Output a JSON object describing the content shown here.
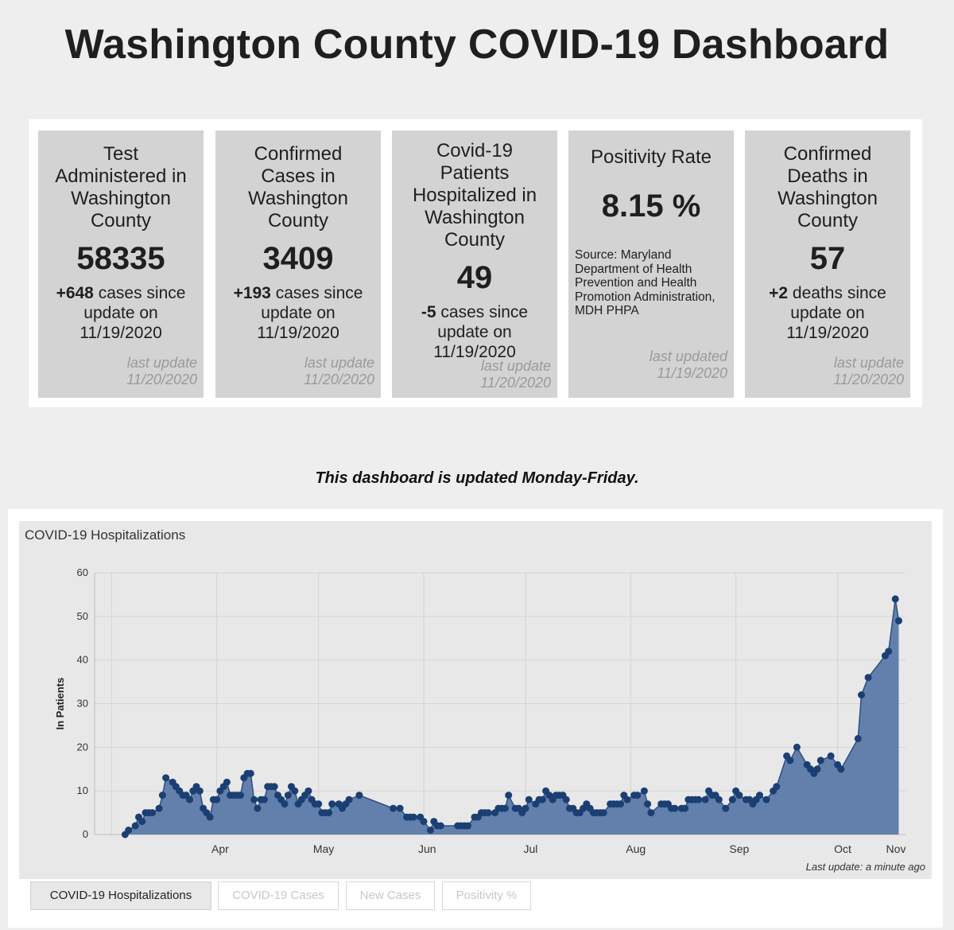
{
  "page": {
    "title": "Washington County COVID-19 Dashboard",
    "update_note": "This dashboard is updated Monday-Friday."
  },
  "cards": [
    {
      "title_lines": [
        "Test",
        "Administered in",
        "Washington",
        "County"
      ],
      "value": "58335",
      "change_value": "+648",
      "change_text_lines": [
        " cases since",
        "update on",
        "11/19/2020"
      ],
      "updated_lines": [
        "last update",
        "11/20/2020"
      ]
    },
    {
      "title_lines": [
        "Confirmed",
        "Cases in",
        "Washington",
        "County"
      ],
      "value": "3409",
      "change_value": "+193",
      "change_text_lines": [
        " cases since",
        "update on",
        "11/19/2020"
      ],
      "updated_lines": [
        "last update",
        "11/20/2020"
      ]
    },
    {
      "title_lines": [
        "Covid-19",
        "Patients",
        "Hospitalized in",
        "Washington",
        "County"
      ],
      "value": "49",
      "change_value": "-5",
      "change_text_lines": [
        " cases since",
        "update on",
        "11/19/2020"
      ],
      "updated_lines": [
        "last update",
        "11/20/2020"
      ]
    },
    {
      "title_lines": [
        "Positivity Rate"
      ],
      "value": "8.15 %",
      "source_lines": [
        "Source: Maryland",
        "Department of Health",
        "Prevention and Health",
        "Promotion Administration,",
        "MDH PHPA"
      ],
      "updated_lines": [
        "last updated",
        "11/19/2020"
      ]
    },
    {
      "title_lines": [
        "Confirmed",
        "Deaths in",
        "Washington",
        "County"
      ],
      "value": "57",
      "change_value": "+2",
      "change_text_lines": [
        " deaths since",
        "update on",
        "11/19/2020"
      ],
      "updated_lines": [
        "last update",
        "11/20/2020"
      ]
    }
  ],
  "chart_panel": {
    "title": "COVID-19 Hospitalizations",
    "last_update": "Last update: a minute ago",
    "tabs": [
      {
        "label": "COVID-19 Hospitalizations",
        "active": true
      },
      {
        "label": "COVID-19 Cases",
        "active": false
      },
      {
        "label": "New Cases",
        "active": false
      },
      {
        "label": "Positivity %",
        "active": false
      }
    ]
  },
  "colors": {
    "area_fill": "#5b7aa8",
    "line": "#2c4f82",
    "marker": "#1b3f73",
    "card_bg": "#d3d3d3"
  },
  "chart_data": {
    "type": "area",
    "title": "COVID-19 Hospitalizations",
    "ylabel": "In Patients",
    "xlabel": "",
    "ylim": [
      0,
      60
    ],
    "yticks": [
      0,
      10,
      20,
      30,
      40,
      50,
      60
    ],
    "xtick_labels": [
      "Apr",
      "May",
      "Jun",
      "Jul",
      "Aug",
      "Sep",
      "Oct",
      "Nov"
    ],
    "xtick_dates": [
      "2020-04-01",
      "2020-05-01",
      "2020-06-01",
      "2020-07-01",
      "2020-08-01",
      "2020-09-01",
      "2020-10-01",
      "2020-11-01"
    ],
    "grid": true,
    "series": [
      {
        "name": "",
        "points": [
          [
            "2020-03-19",
            0
          ],
          [
            "2020-03-20",
            1
          ],
          [
            "2020-03-22",
            2
          ],
          [
            "2020-03-23",
            4
          ],
          [
            "2020-03-24",
            3
          ],
          [
            "2020-03-25",
            5
          ],
          [
            "2020-03-26",
            5
          ],
          [
            "2020-03-27",
            5
          ],
          [
            "2020-03-29",
            6
          ],
          [
            "2020-03-30",
            9
          ],
          [
            "2020-03-31",
            13
          ],
          [
            "2020-04-02",
            12
          ],
          [
            "2020-04-03",
            11
          ],
          [
            "2020-04-04",
            10
          ],
          [
            "2020-04-05",
            9
          ],
          [
            "2020-04-06",
            9
          ],
          [
            "2020-04-07",
            8
          ],
          [
            "2020-04-08",
            10
          ],
          [
            "2020-04-09",
            11
          ],
          [
            "2020-04-10",
            10
          ],
          [
            "2020-04-11",
            6
          ],
          [
            "2020-04-12",
            5
          ],
          [
            "2020-04-13",
            4
          ],
          [
            "2020-04-14",
            8
          ],
          [
            "2020-04-15",
            8
          ],
          [
            "2020-04-16",
            10
          ],
          [
            "2020-04-17",
            11
          ],
          [
            "2020-04-18",
            12
          ],
          [
            "2020-04-19",
            9
          ],
          [
            "2020-04-20",
            9
          ],
          [
            "2020-04-21",
            9
          ],
          [
            "2020-04-22",
            9
          ],
          [
            "2020-04-23",
            13
          ],
          [
            "2020-04-24",
            14
          ],
          [
            "2020-04-25",
            14
          ],
          [
            "2020-04-26",
            8
          ],
          [
            "2020-04-27",
            6
          ],
          [
            "2020-04-28",
            8
          ],
          [
            "2020-04-29",
            8
          ],
          [
            "2020-04-30",
            11
          ],
          [
            "2020-05-01",
            11
          ],
          [
            "2020-05-02",
            11
          ],
          [
            "2020-05-03",
            9
          ],
          [
            "2020-05-04",
            8
          ],
          [
            "2020-05-05",
            7
          ],
          [
            "2020-05-06",
            9
          ],
          [
            "2020-05-07",
            11
          ],
          [
            "2020-05-08",
            10
          ],
          [
            "2020-05-09",
            7
          ],
          [
            "2020-05-10",
            8
          ],
          [
            "2020-05-11",
            9
          ],
          [
            "2020-05-12",
            10
          ],
          [
            "2020-05-13",
            8
          ],
          [
            "2020-05-14",
            7
          ],
          [
            "2020-05-15",
            7
          ],
          [
            "2020-05-16",
            5
          ],
          [
            "2020-05-17",
            5
          ],
          [
            "2020-05-18",
            5
          ],
          [
            "2020-05-19",
            7
          ],
          [
            "2020-05-21",
            7
          ],
          [
            "2020-05-22",
            6
          ],
          [
            "2020-05-23",
            7
          ],
          [
            "2020-05-24",
            8
          ],
          [
            "2020-05-27",
            9
          ],
          [
            "2020-06-06",
            6
          ],
          [
            "2020-06-08",
            6
          ],
          [
            "2020-06-10",
            4
          ],
          [
            "2020-06-11",
            4
          ],
          [
            "2020-06-12",
            4
          ],
          [
            "2020-06-14",
            4
          ],
          [
            "2020-06-15",
            3
          ],
          [
            "2020-06-17",
            1
          ],
          [
            "2020-06-18",
            3
          ],
          [
            "2020-06-19",
            2
          ],
          [
            "2020-06-20",
            2
          ],
          [
            "2020-06-25",
            2
          ],
          [
            "2020-06-26",
            2
          ],
          [
            "2020-06-27",
            2
          ],
          [
            "2020-06-28",
            2
          ],
          [
            "2020-06-30",
            4
          ],
          [
            "2020-07-01",
            4
          ],
          [
            "2020-07-02",
            5
          ],
          [
            "2020-07-03",
            5
          ],
          [
            "2020-07-04",
            5
          ],
          [
            "2020-07-06",
            5
          ],
          [
            "2020-07-07",
            6
          ],
          [
            "2020-07-08",
            6
          ],
          [
            "2020-07-09",
            6
          ],
          [
            "2020-07-10",
            9
          ],
          [
            "2020-07-12",
            6
          ],
          [
            "2020-07-13",
            6
          ],
          [
            "2020-07-14",
            5
          ],
          [
            "2020-07-15",
            6
          ],
          [
            "2020-07-16",
            8
          ],
          [
            "2020-07-18",
            7
          ],
          [
            "2020-07-19",
            8
          ],
          [
            "2020-07-20",
            8
          ],
          [
            "2020-07-21",
            10
          ],
          [
            "2020-07-22",
            9
          ],
          [
            "2020-07-23",
            8
          ],
          [
            "2020-07-24",
            9
          ],
          [
            "2020-07-25",
            9
          ],
          [
            "2020-07-26",
            9
          ],
          [
            "2020-07-27",
            8
          ],
          [
            "2020-07-28",
            6
          ],
          [
            "2020-07-29",
            6
          ],
          [
            "2020-07-30",
            5
          ],
          [
            "2020-07-31",
            5
          ],
          [
            "2020-08-01",
            6
          ],
          [
            "2020-08-02",
            7
          ],
          [
            "2020-08-03",
            6
          ],
          [
            "2020-08-04",
            5
          ],
          [
            "2020-08-05",
            5
          ],
          [
            "2020-08-06",
            5
          ],
          [
            "2020-08-07",
            5
          ],
          [
            "2020-08-09",
            7
          ],
          [
            "2020-08-10",
            7
          ],
          [
            "2020-08-11",
            7
          ],
          [
            "2020-08-12",
            7
          ],
          [
            "2020-08-13",
            9
          ],
          [
            "2020-08-14",
            8
          ],
          [
            "2020-08-16",
            9
          ],
          [
            "2020-08-17",
            9
          ],
          [
            "2020-08-19",
            10
          ],
          [
            "2020-08-20",
            7
          ],
          [
            "2020-08-21",
            5
          ],
          [
            "2020-08-24",
            7
          ],
          [
            "2020-08-25",
            7
          ],
          [
            "2020-08-26",
            7
          ],
          [
            "2020-08-27",
            6
          ],
          [
            "2020-08-28",
            6
          ],
          [
            "2020-08-30",
            6
          ],
          [
            "2020-08-31",
            6
          ],
          [
            "2020-09-01",
            8
          ],
          [
            "2020-09-02",
            8
          ],
          [
            "2020-09-03",
            8
          ],
          [
            "2020-09-04",
            8
          ],
          [
            "2020-09-06",
            8
          ],
          [
            "2020-09-07",
            10
          ],
          [
            "2020-09-08",
            9
          ],
          [
            "2020-09-09",
            9
          ],
          [
            "2020-09-10",
            8
          ],
          [
            "2020-09-12",
            6
          ],
          [
            "2020-09-14",
            8
          ],
          [
            "2020-09-15",
            10
          ],
          [
            "2020-09-16",
            9
          ],
          [
            "2020-09-18",
            8
          ],
          [
            "2020-09-19",
            8
          ],
          [
            "2020-09-20",
            7
          ],
          [
            "2020-09-21",
            8
          ],
          [
            "2020-09-22",
            9
          ],
          [
            "2020-09-24",
            8
          ],
          [
            "2020-09-26",
            10
          ],
          [
            "2020-09-27",
            11
          ],
          [
            "2020-09-30",
            18
          ],
          [
            "2020-10-01",
            17
          ],
          [
            "2020-10-03",
            20
          ],
          [
            "2020-10-06",
            16
          ],
          [
            "2020-10-07",
            15
          ],
          [
            "2020-10-08",
            14
          ],
          [
            "2020-10-09",
            15
          ],
          [
            "2020-10-10",
            17
          ],
          [
            "2020-10-13",
            18
          ],
          [
            "2020-10-15",
            16
          ],
          [
            "2020-10-16",
            15
          ],
          [
            "2020-10-21",
            22
          ],
          [
            "2020-10-22",
            32
          ],
          [
            "2020-10-24",
            36
          ],
          [
            "2020-10-29",
            41
          ],
          [
            "2020-10-30",
            42
          ],
          [
            "2020-11-01",
            54
          ],
          [
            "2020-11-02",
            49
          ]
        ]
      }
    ]
  }
}
